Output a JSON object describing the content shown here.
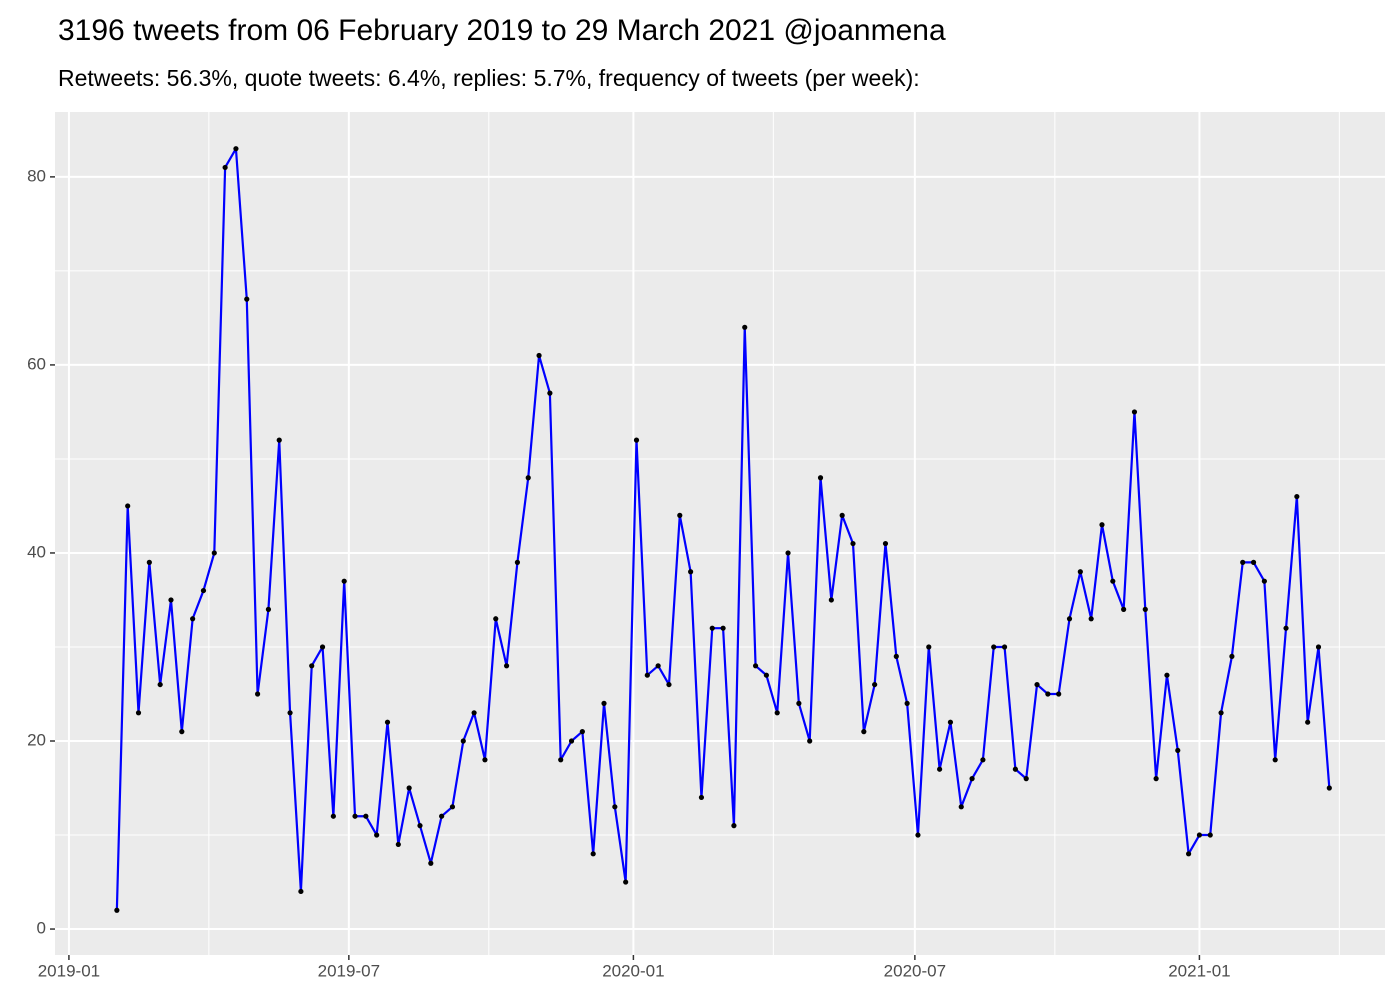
{
  "chart_data": {
    "type": "line",
    "title": "3196 tweets from 06 February 2019 to 29 March 2021 @joanmena",
    "subtitle": "Retweets: 56.3%, quote tweets: 6.4%, replies: 5.7%, frequency of tweets (per week):",
    "x": [
      "2019-02-01",
      "2019-02-08",
      "2019-02-15",
      "2019-02-22",
      "2019-03-01",
      "2019-03-08",
      "2019-03-15",
      "2019-03-22",
      "2019-03-29",
      "2019-04-05",
      "2019-04-12",
      "2019-04-19",
      "2019-04-26",
      "2019-05-03",
      "2019-05-10",
      "2019-05-17",
      "2019-05-24",
      "2019-05-31",
      "2019-06-07",
      "2019-06-14",
      "2019-06-21",
      "2019-06-28",
      "2019-07-05",
      "2019-07-12",
      "2019-07-19",
      "2019-07-26",
      "2019-08-02",
      "2019-08-09",
      "2019-08-16",
      "2019-08-23",
      "2019-08-30",
      "2019-09-06",
      "2019-09-13",
      "2019-09-20",
      "2019-09-27",
      "2019-10-04",
      "2019-10-11",
      "2019-10-18",
      "2019-10-25",
      "2019-11-01",
      "2019-11-08",
      "2019-11-15",
      "2019-11-22",
      "2019-11-29",
      "2019-12-06",
      "2019-12-13",
      "2019-12-20",
      "2019-12-27",
      "2020-01-03",
      "2020-01-10",
      "2020-01-17",
      "2020-01-24",
      "2020-01-31",
      "2020-02-07",
      "2020-02-14",
      "2020-02-21",
      "2020-02-28",
      "2020-03-06",
      "2020-03-13",
      "2020-03-20",
      "2020-03-27",
      "2020-04-03",
      "2020-04-10",
      "2020-04-17",
      "2020-04-24",
      "2020-05-01",
      "2020-05-08",
      "2020-05-15",
      "2020-05-22",
      "2020-05-29",
      "2020-06-05",
      "2020-06-12",
      "2020-06-19",
      "2020-06-26",
      "2020-07-03",
      "2020-07-10",
      "2020-07-17",
      "2020-07-24",
      "2020-07-31",
      "2020-08-07",
      "2020-08-14",
      "2020-08-21",
      "2020-08-28",
      "2020-09-04",
      "2020-09-11",
      "2020-09-18",
      "2020-09-25",
      "2020-10-02",
      "2020-10-09",
      "2020-10-16",
      "2020-10-23",
      "2020-10-30",
      "2020-11-06",
      "2020-11-13",
      "2020-11-20",
      "2020-11-27",
      "2020-12-04",
      "2020-12-11",
      "2020-12-18",
      "2020-12-25",
      "2021-01-01",
      "2021-01-08",
      "2021-01-15",
      "2021-01-22",
      "2021-01-29",
      "2021-02-05",
      "2021-02-12",
      "2021-02-19",
      "2021-02-26",
      "2021-03-05",
      "2021-03-12",
      "2021-03-19",
      "2021-03-26"
    ],
    "values": [
      2,
      45,
      23,
      39,
      26,
      35,
      21,
      33,
      36,
      40,
      81,
      83,
      67,
      25,
      34,
      52,
      23,
      4,
      28,
      30,
      12,
      37,
      12,
      12,
      10,
      22,
      9,
      15,
      11,
      7,
      12,
      13,
      20,
      23,
      18,
      33,
      28,
      39,
      48,
      61,
      57,
      18,
      20,
      21,
      8,
      24,
      13,
      5,
      52,
      27,
      28,
      26,
      44,
      38,
      14,
      32,
      32,
      11,
      64,
      28,
      27,
      23,
      40,
      24,
      20,
      48,
      35,
      44,
      41,
      21,
      26,
      41,
      29,
      24,
      10,
      30,
      17,
      22,
      13,
      16,
      18,
      30,
      30,
      17,
      16,
      26,
      25,
      25,
      33,
      38,
      33,
      43,
      37,
      34,
      55,
      34,
      16,
      27,
      19,
      8,
      10,
      10,
      23,
      29,
      39,
      39,
      37,
      18,
      32,
      46,
      22,
      30,
      15
    ],
    "color": "#0000ff",
    "point_color": "#000000",
    "xlim": [
      "2018-12-23",
      "2021-05-01"
    ],
    "xticks": [
      {
        "value": "2019-01-01",
        "label": "2019-01"
      },
      {
        "value": "2019-07-01",
        "label": "2019-07"
      },
      {
        "value": "2020-01-01",
        "label": "2020-01"
      },
      {
        "value": "2020-07-01",
        "label": "2020-07"
      },
      {
        "value": "2021-01-01",
        "label": "2021-01"
      }
    ],
    "ylim": [
      -2.76,
      86.9
    ],
    "yticks": [
      0,
      20,
      40,
      60,
      80
    ],
    "grid": true
  }
}
